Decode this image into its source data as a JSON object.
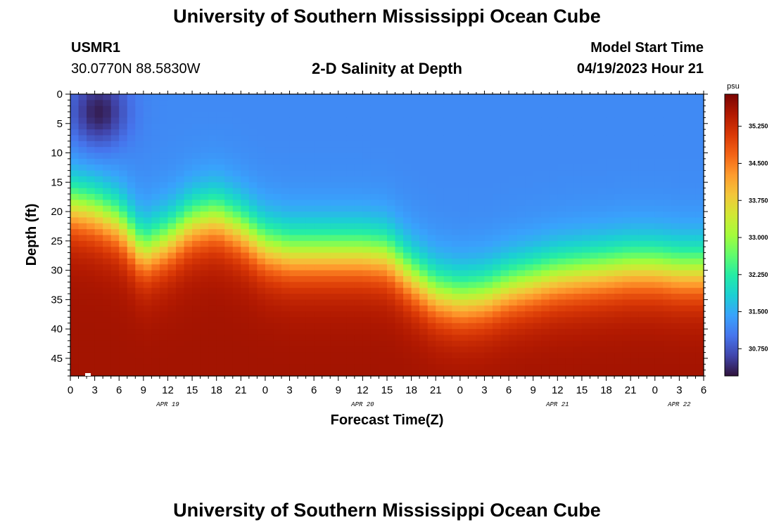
{
  "header": {
    "title": "University of Southern Mississippi Ocean Cube",
    "station_id": "USMR1",
    "coords": "30.0770N  88.5830W",
    "chart_title": "2-D Salinity at Depth",
    "model_label": "Model Start Time",
    "model_time": "04/19/2023 Hour 21"
  },
  "footer": {
    "title": "University of Southern Mississippi Ocean Cube"
  },
  "chart_data": {
    "type": "heatmap",
    "title": "2-D Salinity at Depth",
    "xlabel": "Forecast Time(Z)",
    "ylabel": "Depth (ft)",
    "x_range_hours": [
      0,
      78
    ],
    "y_range_ft": [
      0,
      48
    ],
    "x_tick_labels": [
      "0",
      "3",
      "6",
      "9",
      "12",
      "15",
      "18",
      "21",
      "0",
      "3",
      "6",
      "9",
      "12",
      "15",
      "18",
      "21",
      "0",
      "3",
      "6",
      "9",
      "12",
      "15",
      "18",
      "21",
      "0",
      "3",
      "6"
    ],
    "x_tick_hours": [
      0,
      3,
      6,
      9,
      12,
      15,
      18,
      21,
      24,
      27,
      30,
      33,
      36,
      39,
      42,
      45,
      48,
      51,
      54,
      57,
      60,
      63,
      66,
      69,
      72,
      75,
      78
    ],
    "y_tick_labels": [
      "0",
      "5",
      "10",
      "15",
      "20",
      "25",
      "30",
      "35",
      "40",
      "45"
    ],
    "y_tick_values": [
      0,
      5,
      10,
      15,
      20,
      25,
      30,
      35,
      40,
      45
    ],
    "date_labels": [
      {
        "text": "APR 19",
        "hour": 12
      },
      {
        "text": "APR 20",
        "hour": 36
      },
      {
        "text": "APR 21",
        "hour": 60
      },
      {
        "text": "APR 22",
        "hour": 75
      }
    ],
    "colorbar": {
      "unit": "psu",
      "range": [
        30.2,
        35.9
      ],
      "tick_labels": [
        "30.750",
        "31.500",
        "32.250",
        "33.000",
        "33.750",
        "34.500",
        "35.250"
      ],
      "tick_values": [
        30.75,
        31.5,
        32.25,
        33.0,
        33.75,
        34.5,
        35.25
      ]
    },
    "field": {
      "surface_salinity": 31.2,
      "bottom_salinity": 35.6,
      "halocline_depth_ft_by_hour": {
        "x": [
          0,
          3,
          6,
          9,
          12,
          15,
          18,
          21,
          24,
          27,
          30,
          33,
          36,
          39,
          42,
          45,
          48,
          51,
          54,
          57,
          60,
          63,
          66,
          69,
          72,
          75,
          78
        ],
        "depth": [
          19,
          20,
          22,
          27,
          25,
          22,
          21,
          23,
          26,
          27,
          27,
          27,
          27,
          27.5,
          31,
          34,
          35,
          34.5,
          33,
          32,
          31,
          30.5,
          30,
          29.5,
          29.5,
          30,
          30
        ]
      },
      "fresh_pocket": {
        "center_hour": 3.5,
        "center_depth_ft": 3,
        "salinity": 30.3
      }
    }
  },
  "colors": {
    "scale": [
      "#30123b",
      "#4145ab",
      "#4675ed",
      "#39a2fc",
      "#1bcfd4",
      "#24eca6",
      "#61fc6c",
      "#a4fc3b",
      "#d1e834",
      "#f3c63a",
      "#fe9b2d",
      "#f36315",
      "#d93806",
      "#b11901",
      "#7a0402"
    ]
  }
}
